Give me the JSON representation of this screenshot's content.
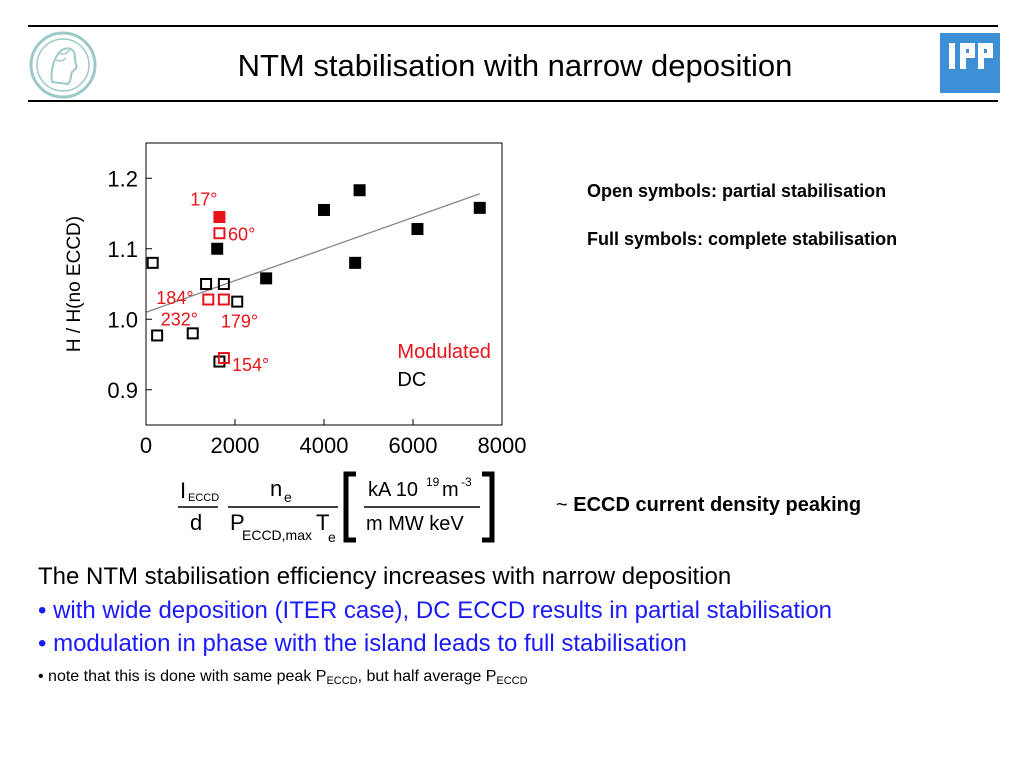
{
  "header": {
    "title": "NTM stabilisation with narrow deposition",
    "logo_right_text": "IPP"
  },
  "legend_notes": {
    "open": "Open symbols: partial stabilisation",
    "full": "Full symbols: complete stabilisation"
  },
  "formula": {
    "i": "I",
    "i_sub": "ECCD",
    "d": "d",
    "ne": "n",
    "ne_sub": "e",
    "p": "P",
    "p_sub": "ECCD,max",
    "te": "T",
    "te_sub": "e",
    "units_top_a": "kA 10",
    "units_top_exp1": "19",
    "units_top_b": "m",
    "units_top_exp2": "-3",
    "units_bottom": "m MW keV"
  },
  "peaking": {
    "tilde": "~ ",
    "text": "ECCD current density peaking"
  },
  "body": {
    "line1": "The NTM stabilisation efficiency increases with narrow deposition",
    "line2": "• with wide deposition (ITER case), DC ECCD results in partial stabilisation",
    "line3": "• modulation in phase with the island leads to full stabilisation",
    "line4_a": "• note that this is done with same peak P",
    "line4_sub1": "ECCD",
    "line4_b": ", but half average P",
    "line4_sub2": "ECCD"
  },
  "chart_data": {
    "type": "scatter",
    "ylabel": "H / H(no ECCD)",
    "xlabel": "",
    "xlim": [
      0,
      8000
    ],
    "ylim": [
      0.85,
      1.25
    ],
    "xticks": [
      "0",
      "2000",
      "4000",
      "6000",
      "8000"
    ],
    "yticks": [
      "0.9",
      "1.0",
      "1.1",
      "1.2"
    ],
    "colors": {
      "dc": "#000000",
      "modulated": "#e8141a"
    },
    "legend": {
      "modulated": "Modulated",
      "dc": "DC",
      "placement": "bottom-right"
    },
    "series": [
      {
        "name": "DC",
        "fill": "full",
        "points": [
          [
            1600,
            1.1
          ],
          [
            2700,
            1.058
          ],
          [
            4000,
            1.155
          ],
          [
            4700,
            1.08
          ],
          [
            4800,
            1.183
          ],
          [
            6100,
            1.128
          ],
          [
            7500,
            1.158
          ]
        ]
      },
      {
        "name": "DC",
        "fill": "open",
        "points": [
          [
            150,
            1.08
          ],
          [
            250,
            0.977
          ],
          [
            1050,
            0.98
          ],
          [
            1350,
            1.05
          ],
          [
            1750,
            1.05
          ],
          [
            2050,
            1.025
          ],
          [
            1650,
            0.94
          ]
        ]
      },
      {
        "name": "Modulated",
        "fill": "full",
        "points": [
          [
            1650,
            1.145
          ]
        ]
      },
      {
        "name": "Modulated",
        "fill": "open",
        "points": [
          [
            1650,
            1.122
          ],
          [
            1400,
            1.028
          ],
          [
            1750,
            1.028
          ],
          [
            1750,
            0.945
          ]
        ]
      }
    ],
    "fit_line": {
      "x": [
        0,
        7500
      ],
      "y": [
        1.01,
        1.178
      ]
    },
    "annotations": [
      {
        "text": "17°",
        "x": 1300,
        "y": 1.17
      },
      {
        "text": "60°",
        "x": 2150,
        "y": 1.12
      },
      {
        "text": "184°",
        "x": 650,
        "y": 1.03
      },
      {
        "text": "232°",
        "x": 750,
        "y": 1.0
      },
      {
        "text": "179°",
        "x": 2100,
        "y": 0.997
      },
      {
        "text": "154°",
        "x": 2350,
        "y": 0.935
      }
    ]
  }
}
